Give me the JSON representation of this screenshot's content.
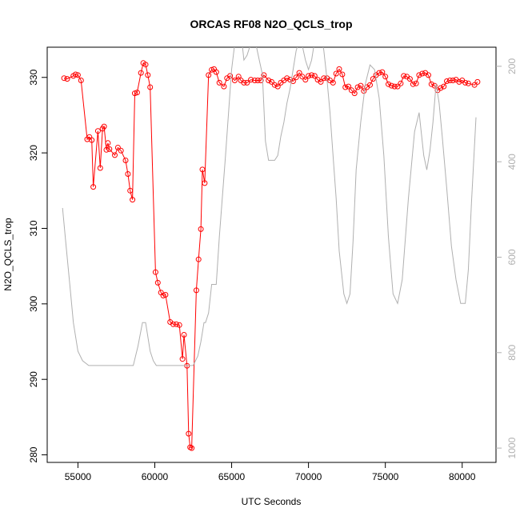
{
  "chart_data": {
    "type": "line",
    "title": "ORCAS RF08 N2O_QCLS_trop",
    "xlabel": "UTC Seconds",
    "ylabel": "N2O_QCLS_trop",
    "xlim": [
      53000,
      82200
    ],
    "ylim": [
      279,
      334
    ],
    "x_ticks": [
      55000,
      60000,
      65000,
      70000,
      75000,
      80000
    ],
    "x_tick_labels": [
      "55000",
      "60000",
      "65000",
      "70000",
      "75000",
      "80000"
    ],
    "y_ticks": [
      280,
      290,
      300,
      310,
      320,
      330
    ],
    "y_tick_labels": [
      "280",
      "290",
      "300",
      "310",
      "320",
      "330"
    ],
    "right_axis": {
      "ticks": [
        200,
        400,
        600,
        800,
        1000
      ],
      "tick_labels": [
        "200",
        "400",
        "600",
        "800",
        "1000"
      ],
      "lim": [
        1030,
        160
      ],
      "color": "#b0b0b0"
    },
    "grid": false,
    "series": [
      {
        "color": "#ff0000",
        "marker": "open-circle",
        "x": [
          54100,
          54300,
          54700,
          54850,
          55000,
          55200,
          55600,
          55750,
          55900,
          56000,
          56300,
          56450,
          56600,
          56700,
          56850,
          56950,
          57050,
          57400,
          57600,
          57800,
          58100,
          58250,
          58400,
          58550,
          58700,
          58850,
          59100,
          59250,
          59400,
          59550,
          59700,
          60050,
          60200,
          60400,
          60550,
          60700,
          61000,
          61200,
          61400,
          61600,
          61800,
          61900,
          62100,
          62200,
          62300,
          62400,
          62700,
          62850,
          63000,
          63100,
          63250,
          63500,
          63700,
          63850,
          64000,
          64200,
          64500,
          64700,
          64900,
          65200,
          65450,
          65600,
          65800,
          66000,
          66250,
          66500,
          66700,
          66900,
          67100,
          67400,
          67600,
          67800,
          68000,
          68200,
          68400,
          68600,
          68800,
          69000,
          69200,
          69400,
          69600,
          69800,
          70000,
          70200,
          70400,
          70600,
          70800,
          71000,
          71200,
          71400,
          71600,
          71800,
          72000,
          72200,
          72400,
          72600,
          72800,
          73000,
          73200,
          73400,
          73600,
          73800,
          74000,
          74200,
          74400,
          74600,
          74800,
          75000,
          75200,
          75400,
          75600,
          75800,
          76000,
          76200,
          76400,
          76600,
          76800,
          77000,
          77200,
          77400,
          77600,
          77800,
          78000,
          78200,
          78400,
          78600,
          78800,
          79000,
          79200,
          79400,
          79600,
          79800,
          80000,
          80200,
          80400,
          80800,
          81000
        ],
        "y": [
          329.9,
          329.8,
          330.2,
          330.4,
          330.3,
          329.6,
          321.8,
          322.1,
          321.7,
          315.5,
          322.9,
          318.0,
          323.2,
          323.5,
          320.4,
          321.3,
          320.5,
          319.7,
          320.7,
          320.3,
          319.0,
          317.2,
          315.0,
          313.8,
          327.9,
          328.0,
          330.6,
          331.9,
          331.7,
          330.3,
          328.7,
          304.2,
          302.8,
          301.5,
          301.1,
          301.2,
          297.6,
          297.3,
          297.3,
          297.2,
          292.7,
          295.9,
          291.8,
          282.8,
          281.0,
          280.9,
          301.8,
          305.9,
          309.9,
          317.8,
          316.0,
          330.3,
          331.0,
          331.1,
          330.7,
          329.3,
          328.8,
          329.9,
          330.2,
          329.6,
          330.1,
          329.6,
          329.3,
          329.3,
          329.7,
          329.6,
          329.6,
          329.6,
          330.3,
          329.6,
          329.4,
          329.0,
          328.8,
          329.3,
          329.6,
          329.9,
          329.7,
          329.5,
          330.0,
          330.6,
          330.1,
          329.7,
          330.2,
          330.3,
          330.2,
          329.7,
          329.4,
          329.9,
          329.9,
          329.6,
          329.3,
          330.5,
          331.1,
          330.4,
          328.7,
          328.8,
          328.3,
          327.9,
          328.7,
          328.9,
          328.2,
          328.7,
          329.0,
          329.8,
          330.3,
          330.6,
          330.7,
          330.1,
          329.1,
          328.9,
          328.8,
          328.8,
          329.2,
          330.2,
          330.1,
          329.8,
          329.1,
          329.2,
          330.3,
          330.5,
          330.6,
          330.3,
          329.1,
          328.9,
          328.3,
          328.6,
          328.8,
          329.5,
          329.6,
          329.6,
          329.7,
          329.4,
          329.6,
          329.3,
          329.2,
          329.0,
          329.4
        ]
      },
      {
        "axis": "right",
        "color": "#b0b0b0",
        "x": [
          54000,
          54200,
          54500,
          54700,
          55000,
          55300,
          55700,
          56000,
          57000,
          58000,
          58600,
          58900,
          59200,
          59400,
          59700,
          59900,
          60100,
          60500,
          61000,
          61500,
          61800,
          62000,
          62100,
          62200,
          62500,
          62800,
          63000,
          63200,
          63300,
          63500,
          63700,
          64000,
          64200,
          64600,
          65000,
          65300,
          65500,
          65700,
          65800,
          66000,
          66200,
          66400,
          66600,
          66800,
          67000,
          67200,
          67400,
          67600,
          67800,
          68000,
          68200,
          68400,
          68600,
          68800,
          69000,
          69200,
          69400,
          69600,
          69800,
          70000,
          70200,
          70400,
          70600,
          70800,
          71000,
          71200,
          71400,
          71600,
          71800,
          72000,
          72300,
          72500,
          72700,
          72900,
          73100,
          73400,
          73700,
          74000,
          74300,
          74600,
          74900,
          75200,
          75500,
          75800,
          76100,
          76500,
          76900,
          77200,
          77500,
          77700,
          77900,
          78100,
          78300,
          78500,
          78700,
          79000,
          79300,
          79600,
          79900,
          80200,
          80400,
          80600,
          80900
        ],
        "y": [
          497,
          567,
          667,
          737,
          797,
          817,
          827,
          827,
          827,
          827,
          827,
          787,
          737,
          737,
          797,
          817,
          827,
          827,
          827,
          827,
          827,
          827,
          827,
          827,
          827,
          807,
          777,
          737,
          737,
          717,
          657,
          657,
          557,
          387,
          207,
          127,
          117,
          157,
          187,
          177,
          157,
          127,
          157,
          187,
          217,
          357,
          397,
          397,
          397,
          387,
          347,
          317,
          277,
          247,
          207,
          167,
          147,
          157,
          187,
          207,
          187,
          147,
          117,
          127,
          167,
          227,
          297,
          387,
          477,
          587,
          677,
          697,
          677,
          567,
          417,
          317,
          237,
          197,
          207,
          267,
          387,
          557,
          677,
          697,
          647,
          477,
          337,
          297,
          387,
          417,
          377,
          317,
          237,
          277,
          347,
          457,
          577,
          647,
          697,
          697,
          627,
          487,
          307
        ]
      }
    ]
  }
}
